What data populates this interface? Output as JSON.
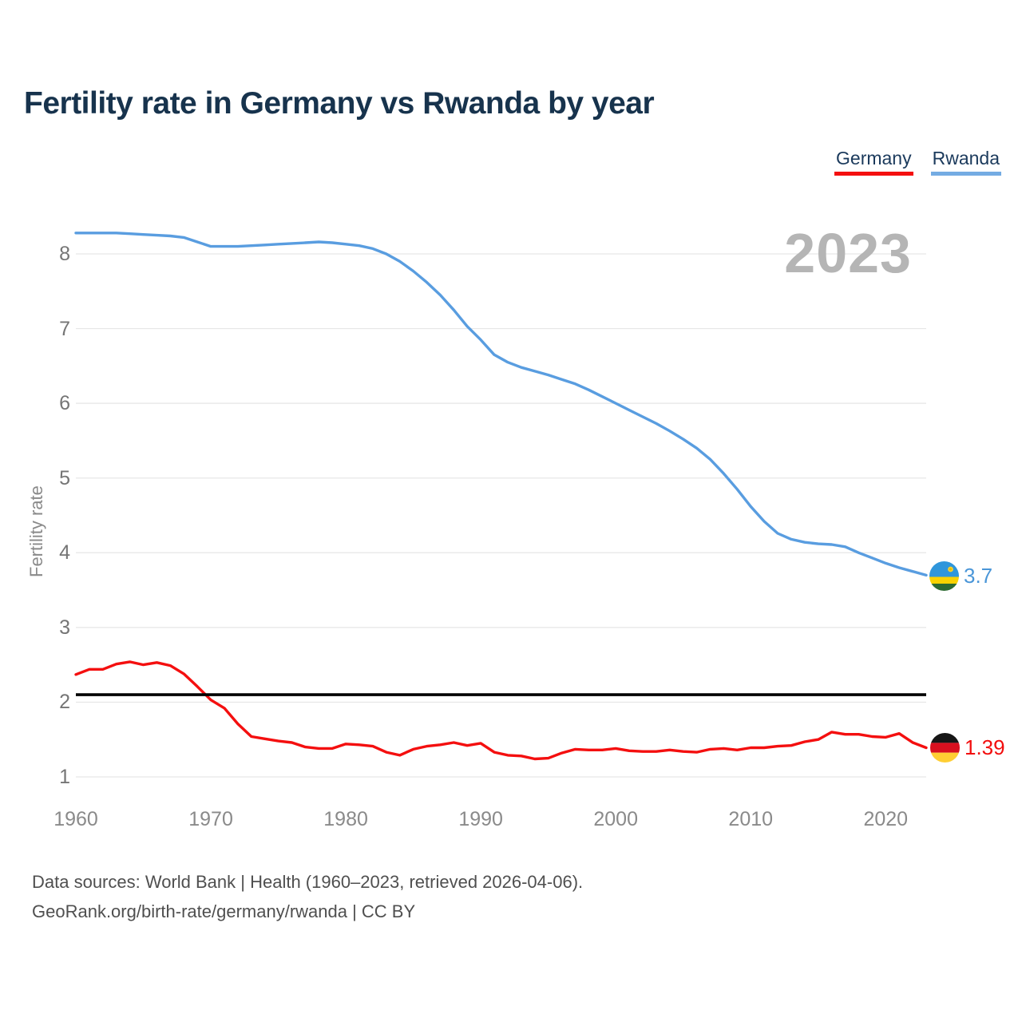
{
  "title": "Fertility rate in Germany vs Rwanda by year",
  "watermark": "2023",
  "legend": {
    "items": [
      {
        "label": "Germany",
        "color": "#f40f0f"
      },
      {
        "label": "Rwanda",
        "color": "#74ace3"
      }
    ]
  },
  "end_labels": {
    "rwanda": {
      "country": "Rwanda",
      "value": "3.7",
      "color": "#4a96d8",
      "icon": "rwanda-flag"
    },
    "germany": {
      "country": "Germany",
      "value": "1.39",
      "color": "#f20d0d",
      "icon": "germany-flag"
    }
  },
  "footer": {
    "line1": "Data sources: World Bank | Health (1960–2023, retrieved 2026-04-06).",
    "line2": "GeoRank.org/birth-rate/germany/rwanda | CC BY"
  },
  "colors": {
    "background": "#ffffff",
    "title_text": "#17334d",
    "gridline": "#e6e6e6",
    "tick_text": "#7a7a7a",
    "watermark": "#b5b5b5",
    "footer_text": "#4f4f4f",
    "reference_line": "#000000"
  },
  "chart_data": {
    "type": "line",
    "title": "Fertility rate in Germany vs Rwanda by year",
    "xlabel": "",
    "ylabel": "Fertility rate",
    "xlim": [
      1960,
      2023
    ],
    "ylim": [
      0.75,
      8.6
    ],
    "grid": "horizontal",
    "legend_position": "top-right",
    "x_axis": {
      "ticks": [
        1960,
        1970,
        1980,
        1990,
        2000,
        2010,
        2020
      ]
    },
    "y_axis": {
      "ticks": [
        1,
        2,
        3,
        4,
        5,
        6,
        7,
        8
      ]
    },
    "reference_line": {
      "value": 2.1,
      "color": "#000000"
    },
    "x": [
      1960,
      1961,
      1962,
      1963,
      1964,
      1965,
      1966,
      1967,
      1968,
      1969,
      1970,
      1971,
      1972,
      1973,
      1974,
      1975,
      1976,
      1977,
      1978,
      1979,
      1980,
      1981,
      1982,
      1983,
      1984,
      1985,
      1986,
      1987,
      1988,
      1989,
      1990,
      1991,
      1992,
      1993,
      1994,
      1995,
      1996,
      1997,
      1998,
      1999,
      2000,
      2001,
      2002,
      2003,
      2004,
      2005,
      2006,
      2007,
      2008,
      2009,
      2010,
      2011,
      2012,
      2013,
      2014,
      2015,
      2016,
      2017,
      2018,
      2019,
      2020,
      2021,
      2022,
      2023
    ],
    "series": [
      {
        "name": "Rwanda",
        "color": "#599de0",
        "end_value_label": "3.7",
        "values": [
          8.28,
          8.28,
          8.28,
          8.28,
          8.27,
          8.26,
          8.25,
          8.24,
          8.22,
          8.16,
          8.1,
          8.1,
          8.1,
          8.11,
          8.12,
          8.13,
          8.14,
          8.15,
          8.16,
          8.15,
          8.13,
          8.11,
          8.07,
          8.0,
          7.9,
          7.77,
          7.62,
          7.45,
          7.25,
          7.03,
          6.85,
          6.65,
          6.55,
          6.48,
          6.43,
          6.38,
          6.32,
          6.26,
          6.18,
          6.09,
          6.0,
          5.91,
          5.82,
          5.73,
          5.63,
          5.52,
          5.4,
          5.25,
          5.06,
          4.85,
          4.62,
          4.42,
          4.26,
          4.18,
          4.14,
          4.12,
          4.11,
          4.08,
          4.0,
          3.93,
          3.86,
          3.8,
          3.75,
          3.7
        ]
      },
      {
        "name": "Germany",
        "color": "#f40f0f",
        "end_value_label": "1.39",
        "values": [
          2.37,
          2.44,
          2.44,
          2.51,
          2.54,
          2.5,
          2.53,
          2.49,
          2.38,
          2.21,
          2.03,
          1.92,
          1.71,
          1.54,
          1.51,
          1.48,
          1.46,
          1.4,
          1.38,
          1.38,
          1.44,
          1.43,
          1.41,
          1.33,
          1.29,
          1.37,
          1.41,
          1.43,
          1.46,
          1.42,
          1.45,
          1.33,
          1.29,
          1.28,
          1.24,
          1.25,
          1.32,
          1.37,
          1.36,
          1.36,
          1.38,
          1.35,
          1.34,
          1.34,
          1.36,
          1.34,
          1.33,
          1.37,
          1.38,
          1.36,
          1.39,
          1.39,
          1.41,
          1.42,
          1.47,
          1.5,
          1.6,
          1.57,
          1.57,
          1.54,
          1.53,
          1.58,
          1.46,
          1.39
        ]
      }
    ]
  }
}
